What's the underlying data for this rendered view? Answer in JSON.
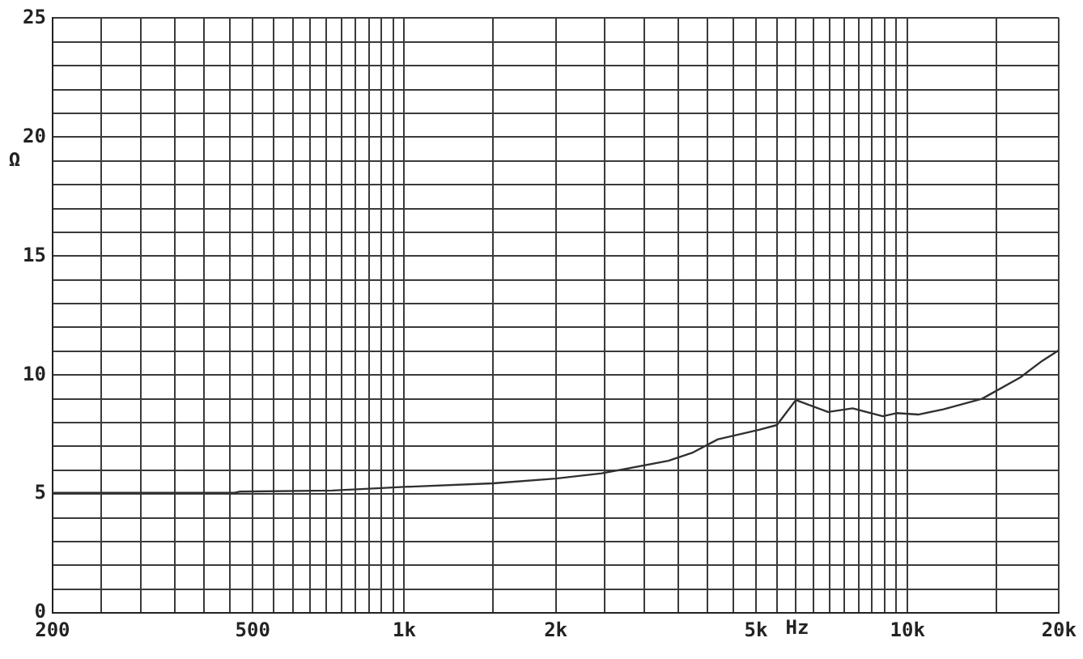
{
  "chart_data": {
    "type": "line",
    "xlabel": "Hz",
    "ylabel": "Ω",
    "log": "x",
    "grid": true,
    "marker": "none",
    "legend": false,
    "xlim": [
      200,
      20000
    ],
    "xticks": [
      200,
      {
        "value": 250,
        "label": null
      },
      {
        "value": 300,
        "label": null
      },
      {
        "value": 350,
        "label": null
      },
      {
        "value": 400,
        "label": null
      },
      {
        "value": 450,
        "label": null
      },
      500,
      {
        "value": 550,
        "label": null
      },
      {
        "value": 600,
        "label": null
      },
      {
        "value": 650,
        "label": null
      },
      {
        "value": 700,
        "label": null
      },
      {
        "value": 750,
        "label": null
      },
      {
        "value": 800,
        "label": null
      },
      {
        "value": 850,
        "label": null
      },
      {
        "value": 900,
        "label": null
      },
      {
        "value": 950,
        "label": null
      },
      {
        "value": 1000,
        "label": "1k"
      },
      {
        "value": 1500,
        "label": null
      },
      {
        "value": 2000,
        "label": "2k"
      },
      {
        "value": 2500,
        "label": null
      },
      {
        "value": 3000,
        "label": null
      },
      {
        "value": 3500,
        "label": null
      },
      {
        "value": 4000,
        "label": null
      },
      {
        "value": 4500,
        "label": null
      },
      {
        "value": 5000,
        "label": "5k"
      },
      {
        "value": 5500,
        "label": null
      },
      {
        "value": 6000,
        "label": null
      },
      {
        "value": 6500,
        "label": null
      },
      {
        "value": 7000,
        "label": null
      },
      {
        "value": 7500,
        "label": null
      },
      {
        "value": 8000,
        "label": null
      },
      {
        "value": 8500,
        "label": null
      },
      {
        "value": 9000,
        "label": null
      },
      {
        "value": 9500,
        "label": null
      },
      {
        "value": 10000,
        "label": "10k"
      },
      {
        "value": 15000,
        "label": null
      },
      {
        "value": 20000,
        "label": "20k"
      }
    ],
    "ylim": [
      0,
      25
    ],
    "yticks": [
      0,
      {
        "value": 1,
        "label": null
      },
      {
        "value": 2,
        "label": null
      },
      {
        "value": 3,
        "label": null
      },
      {
        "value": 4,
        "label": null
      },
      5,
      {
        "value": 6,
        "label": null
      },
      {
        "value": 7,
        "label": null
      },
      {
        "value": 8,
        "label": null
      },
      {
        "value": 9,
        "label": null
      },
      10,
      {
        "value": 11,
        "label": null
      },
      {
        "value": 12,
        "label": null
      },
      {
        "value": 13,
        "label": null
      },
      {
        "value": 14,
        "label": null
      },
      15,
      {
        "value": 16,
        "label": null
      },
      {
        "value": 17,
        "label": null
      },
      {
        "value": 18,
        "label": null
      },
      {
        "value": 19,
        "label": null
      },
      20,
      {
        "value": 21,
        "label": null
      },
      {
        "value": 22,
        "label": null
      },
      {
        "value": 23,
        "label": null
      },
      {
        "value": 24,
        "label": null
      },
      25
    ],
    "x": [
      200,
      460,
      470,
      720,
      900,
      1000,
      1500,
      2000,
      2470,
      3350,
      3750,
      4200,
      5070,
      5500,
      6000,
      6950,
      7780,
      8930,
      9510,
      10500,
      11780,
      14060,
      16750,
      18530,
      20000
    ],
    "series": [
      {
        "color": "#303030",
        "values": [
          5.05,
          5.05,
          5.1,
          5.15,
          5.25,
          5.3,
          5.45,
          5.65,
          5.87,
          6.4,
          6.75,
          7.3,
          7.7,
          7.9,
          8.95,
          8.45,
          8.6,
          8.27,
          8.4,
          8.34,
          8.56,
          9.0,
          9.9,
          10.6,
          11.05
        ]
      }
    ]
  }
}
